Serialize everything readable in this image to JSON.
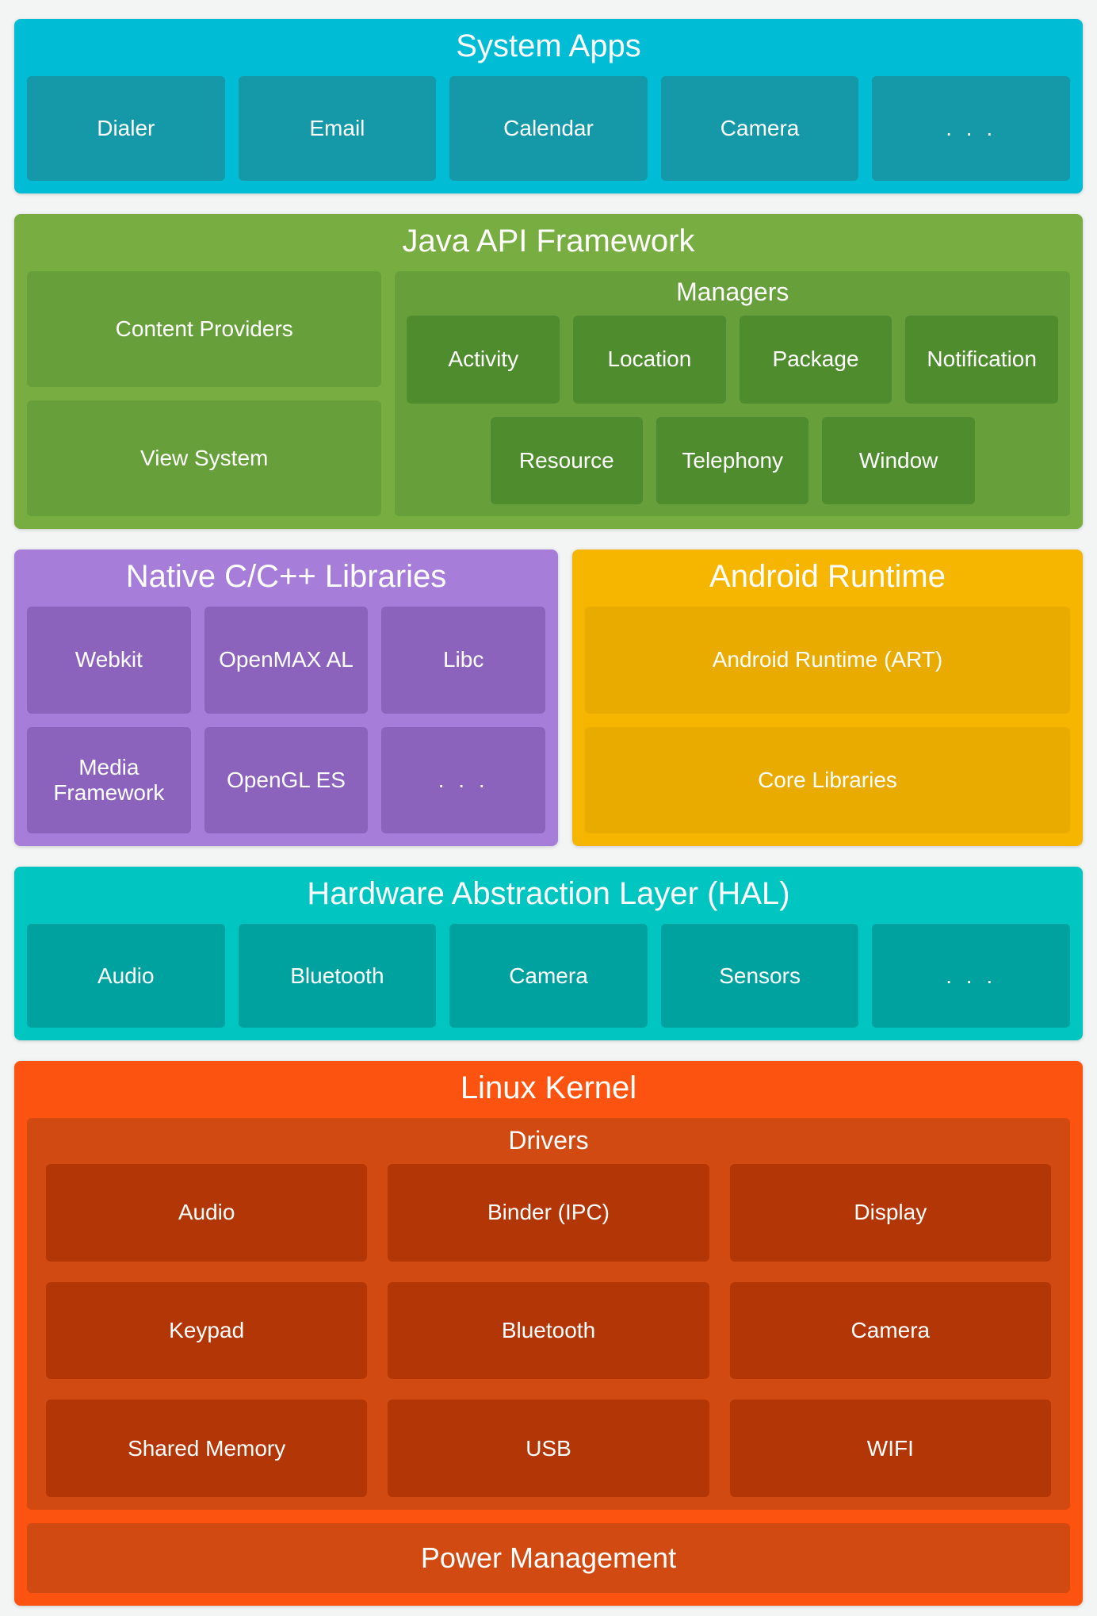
{
  "colors": {
    "page_bg": "#f3f4f4",
    "system_apps": "#00BCD4",
    "system_apps_box": "#1598A8",
    "java_api": "#78AD41",
    "java_api_box": "#67A03A",
    "java_api_manager_box": "#4E8C2E",
    "native_libs": "#A67DD9",
    "native_libs_box": "#8B63BD",
    "android_runtime": "#F6B600",
    "android_runtime_box": "#EAAB00",
    "hal": "#00C5C0",
    "hal_box": "#00A29F",
    "linux_kernel": "#FC5310",
    "linux_kernel_box": "#D14A12",
    "driver_box": "#B23606",
    "text": "#FFFFFF"
  },
  "sections": {
    "system_apps": {
      "title": "System Apps",
      "items": [
        "Dialer",
        "Email",
        "Calendar",
        "Camera",
        ". . ."
      ]
    },
    "java_api": {
      "title": "Java API Framework",
      "left_items": [
        "Content Providers",
        "View System"
      ],
      "managers": {
        "title": "Managers",
        "row1": [
          "Activity",
          "Location",
          "Package",
          "Notification"
        ],
        "row2": [
          "Resource",
          "Telephony",
          "Window"
        ]
      }
    },
    "native_libs": {
      "title": "Native C/C++ Libraries",
      "items": [
        "Webkit",
        "OpenMAX AL",
        "Libc",
        "Media Framework",
        "OpenGL ES",
        ". . ."
      ]
    },
    "android_runtime": {
      "title": "Android Runtime",
      "items": [
        "Android Runtime (ART)",
        "Core Libraries"
      ]
    },
    "hal": {
      "title": "Hardware Abstraction Layer (HAL)",
      "items": [
        "Audio",
        "Bluetooth",
        "Camera",
        "Sensors",
        ". . ."
      ]
    },
    "linux_kernel": {
      "title": "Linux Kernel",
      "drivers": {
        "title": "Drivers",
        "items": [
          "Audio",
          "Binder (IPC)",
          "Display",
          "Keypad",
          "Bluetooth",
          "Camera",
          "Shared Memory",
          "USB",
          "WIFI"
        ]
      },
      "power_label": "Power Management"
    }
  }
}
